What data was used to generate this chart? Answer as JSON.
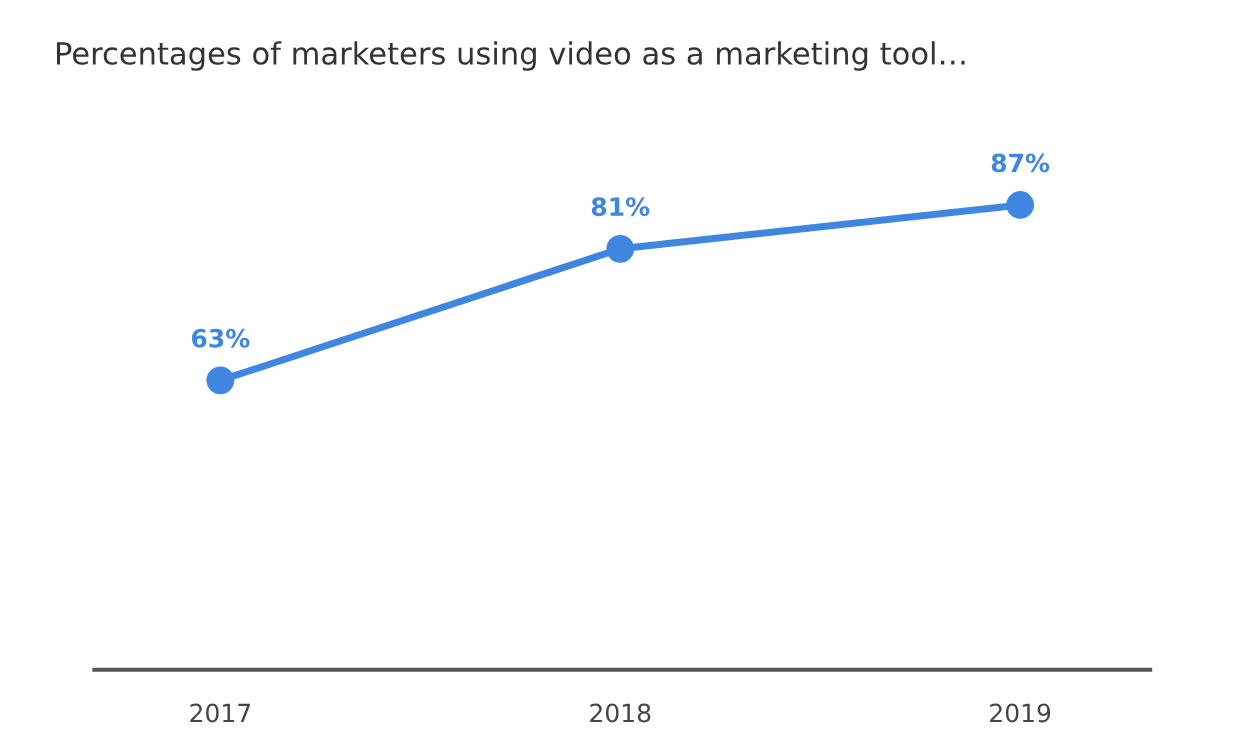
{
  "chart_data": {
    "type": "line",
    "title": "Percentages of marketers using video as a marketing tool…",
    "categories": [
      "2017",
      "2018",
      "2019"
    ],
    "series": [
      {
        "color": "#3f86e0",
        "values": [
          63,
          81,
          87
        ],
        "value_labels": [
          "63%",
          "81%",
          "87%"
        ]
      }
    ],
    "tick_labels": "x",
    "grid": false,
    "legend": false,
    "marker": "circle",
    "line_style": "solid"
  }
}
